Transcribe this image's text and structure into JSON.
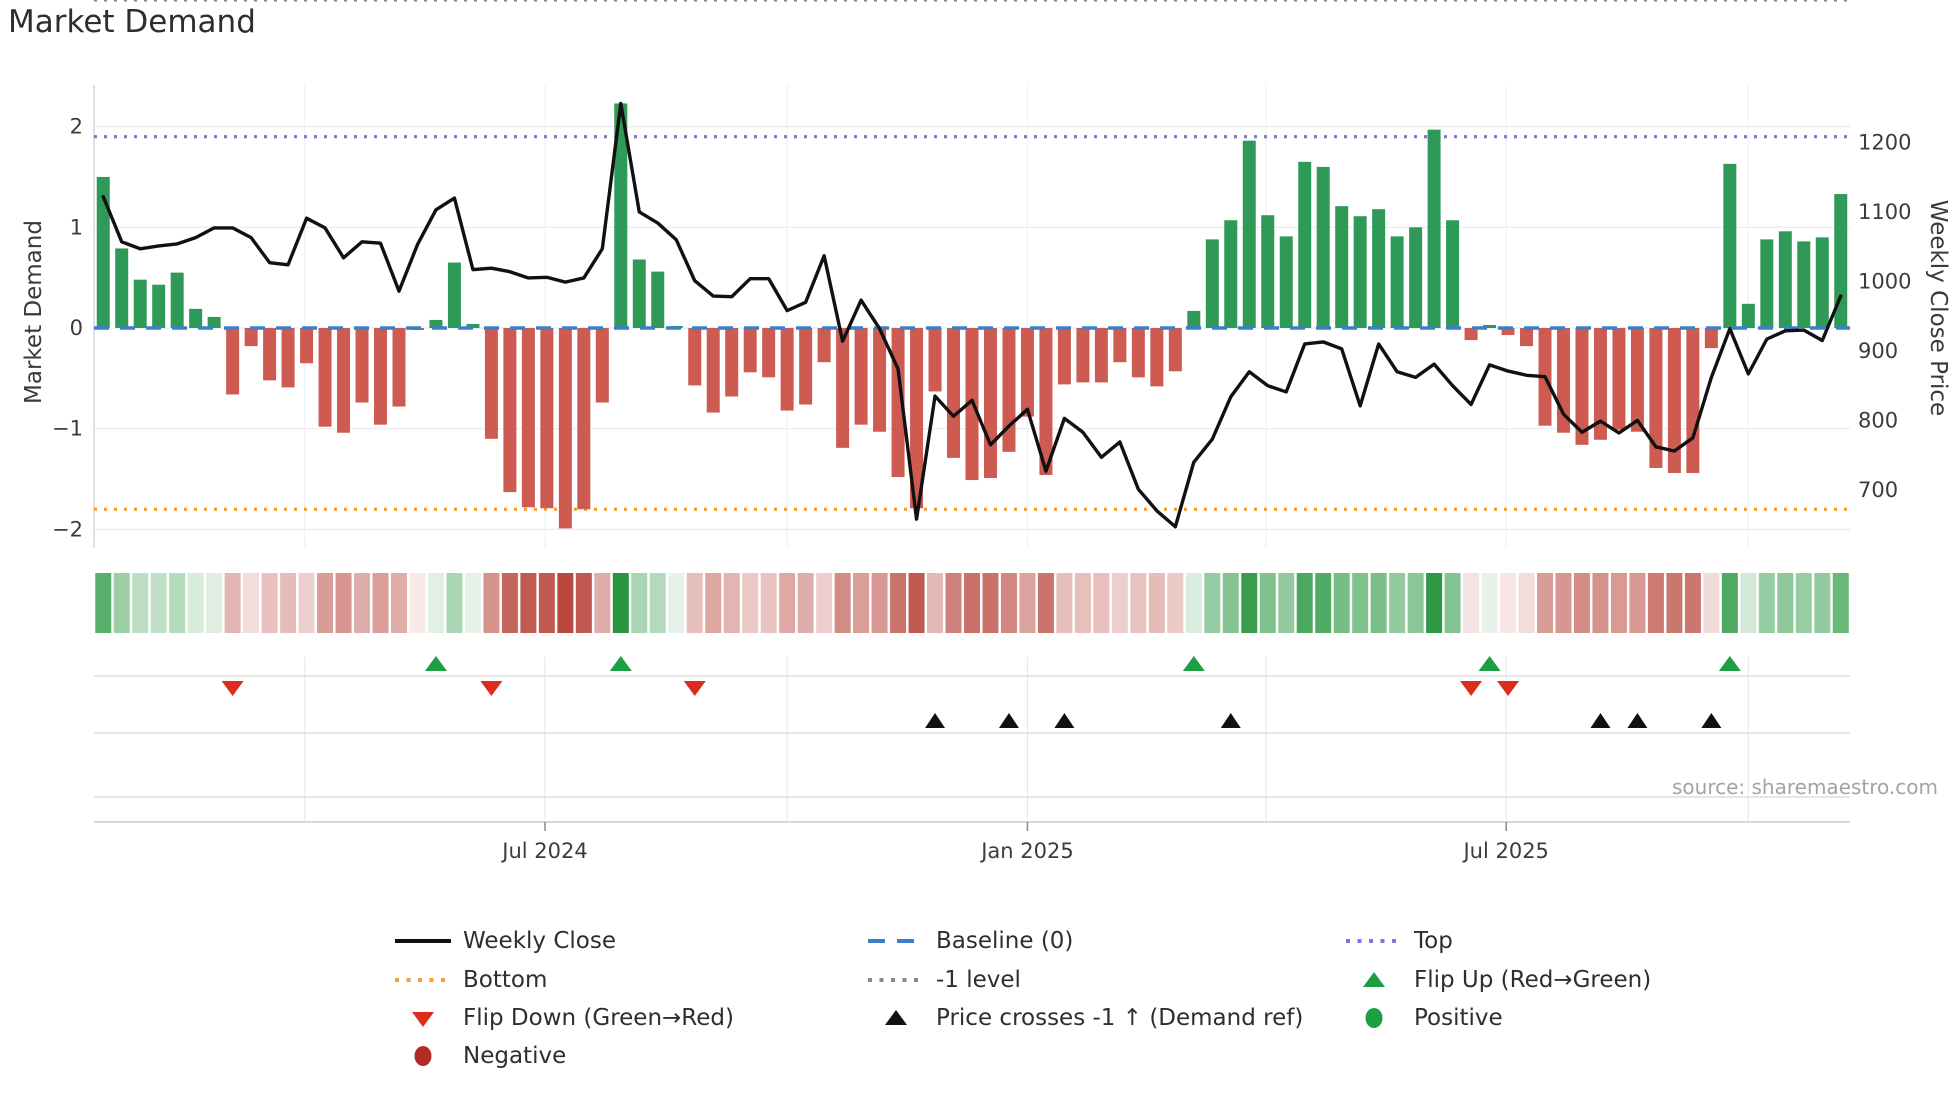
{
  "header": {
    "title": "Market Demand"
  },
  "source_note": "source: sharemaestro.com",
  "chart_data": {
    "type": "bar+line",
    "title": "Market Demand",
    "weeks": 95,
    "x_axis": {
      "tick_labels": [
        "Jul 2024",
        "Jan 2025",
        "Jul 2025"
      ],
      "tick_week_positions": [
        24.9,
        51.0,
        76.9
      ],
      "quarter_week_positions": [
        11.9,
        24.9,
        38.0,
        51.0,
        63.9,
        76.9,
        90.0
      ]
    },
    "left_axis": {
      "label": "Market Demand",
      "ticks": [
        2,
        1,
        0,
        -1,
        -2
      ]
    },
    "right_axis": {
      "label": "Weekly Close Price",
      "ticks": [
        1200,
        1100,
        1000,
        900,
        800,
        700
      ]
    },
    "reference_levels": {
      "baseline": 0,
      "top": 1.9,
      "bottom": -1.8,
      "minus_one_level": -1
    },
    "series": [
      {
        "name": "Market Demand (weekly bars)",
        "type": "bar",
        "values": [
          1.5,
          0.79,
          0.48,
          0.43,
          0.55,
          0.19,
          0.11,
          -0.66,
          -0.18,
          -0.52,
          -0.59,
          -0.35,
          -0.98,
          -1.04,
          -0.74,
          -0.96,
          -0.78,
          -0.02,
          0.08,
          0.65,
          0.04,
          -1.1,
          -1.63,
          -1.78,
          -1.79,
          -1.99,
          -1.8,
          -0.74,
          2.23,
          0.68,
          0.56,
          0.02,
          -0.57,
          -0.84,
          -0.68,
          -0.44,
          -0.49,
          -0.82,
          -0.76,
          -0.34,
          -1.19,
          -0.96,
          -1.03,
          -1.48,
          -1.79,
          -0.63,
          -1.29,
          -1.51,
          -1.49,
          -1.23,
          -0.88,
          -1.46,
          -0.56,
          -0.54,
          -0.54,
          -0.34,
          -0.49,
          -0.58,
          -0.43,
          0.17,
          0.88,
          1.07,
          1.86,
          1.12,
          0.91,
          1.65,
          1.6,
          1.21,
          1.11,
          1.18,
          0.91,
          1.0,
          1.97,
          1.07,
          -0.12,
          0.03,
          -0.07,
          -0.18,
          -0.97,
          -1.04,
          -1.16,
          -1.11,
          -1.01,
          -1.03,
          -1.39,
          -1.44,
          -1.44,
          -0.2,
          1.63,
          0.24,
          0.88,
          0.96,
          0.86,
          0.9,
          1.33
        ]
      },
      {
        "name": "Weekly Close",
        "type": "line",
        "values": [
          1122,
          1057,
          1047,
          1051,
          1054,
          1063,
          1077,
          1077,
          1063,
          1027,
          1024,
          1091,
          1077,
          1034,
          1057,
          1055,
          986,
          1053,
          1103,
          1120,
          1017,
          1019,
          1014,
          1005,
          1006,
          999,
          1005,
          1047,
          1256,
          1100,
          1084,
          1060,
          1001,
          979,
          978,
          1004,
          1004,
          958,
          970,
          1037,
          914,
          973,
          932,
          874,
          658,
          835,
          806,
          829,
          765,
          792,
          816,
          727,
          803,
          783,
          747,
          769,
          701,
          670,
          647,
          740,
          773,
          834,
          870,
          850,
          841,
          910,
          913,
          903,
          821,
          910,
          870,
          862,
          881,
          850,
          823,
          880,
          871,
          865,
          863,
          809,
          783,
          799,
          782,
          800,
          762,
          756,
          775,
          862,
          932,
          867,
          917,
          929,
          930,
          915,
          979
        ]
      }
    ],
    "heatmap": {
      "note": "weekly color strip derived from bar values (green positive, red negative, intensity = magnitude)"
    },
    "markers": {
      "flip_up": {
        "label": "Flip Up (Red→Green)",
        "weeks": [
          19,
          29,
          60,
          76,
          89
        ]
      },
      "flip_down": {
        "label": "Flip Down (Green→Red)",
        "weeks": [
          8,
          22,
          33,
          75,
          77
        ]
      },
      "price_cross": {
        "label": "Price crosses -1 ↑ (Demand ref)",
        "weeks": [
          46,
          50,
          53,
          62,
          82,
          84,
          88
        ]
      }
    },
    "colors": {
      "bar_positive": "#2f9a58",
      "bar_negative": "#cd5b52",
      "heat_positive": "#27963f",
      "heat_negative": "#b8443a",
      "price_line": "#111111",
      "baseline": "#3b7fc4",
      "top": "#7f74d8",
      "bottom": "#efa036",
      "minus_one": "#8a8a8a",
      "flip_up": "#1d9e43",
      "flip_down": "#dd2b1c",
      "price_cross": "#111111",
      "positive_dot": "#1d9e43",
      "negative_dot": "#b22b25"
    }
  },
  "legend": {
    "items": [
      {
        "label": "Weekly Close",
        "kind": "line-solid",
        "color": "#111111"
      },
      {
        "label": "Baseline (0)",
        "kind": "line-dashed",
        "color": "#3b7fc4"
      },
      {
        "label": "Top",
        "kind": "line-dotted",
        "color": "#7f74d8"
      },
      {
        "label": "Bottom",
        "kind": "line-dotted",
        "color": "#efa036"
      },
      {
        "label": "-1 level",
        "kind": "line-dotted",
        "color": "#8a8a8a"
      },
      {
        "label": "Flip Up (Red→Green)",
        "kind": "tri-up",
        "color": "#1d9e43"
      },
      {
        "label": "Flip Down (Green→Red)",
        "kind": "tri-down",
        "color": "#dd2b1c"
      },
      {
        "label": "Price crosses -1 ↑ (Demand ref)",
        "kind": "tri-up",
        "color": "#111111"
      },
      {
        "label": "Positive",
        "kind": "circle",
        "color": "#1d9e43"
      },
      {
        "label": "Negative",
        "kind": "circle",
        "color": "#b22b25"
      }
    ]
  }
}
